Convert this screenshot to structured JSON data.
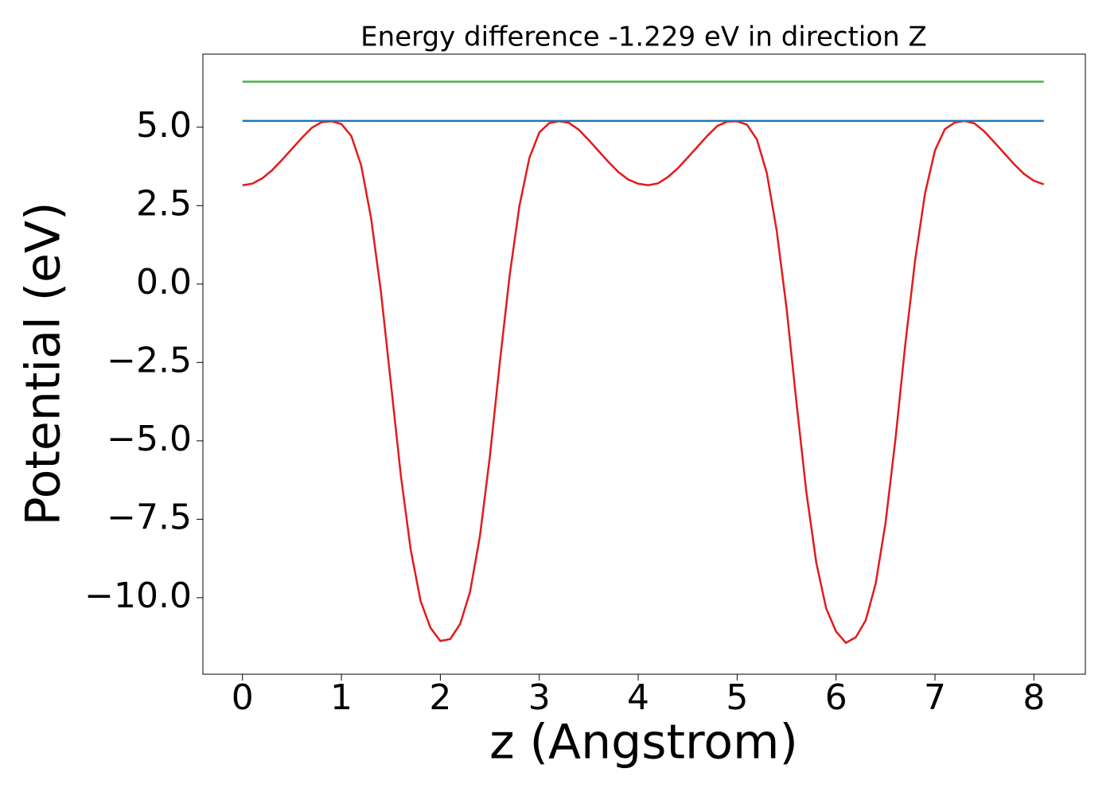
{
  "chart_data": {
    "type": "line",
    "title": "Energy difference -1.229 eV in direction Z",
    "x_label": "z (Angstrom)",
    "y_label": "Potential (eV)",
    "xlim": [
      -0.4,
      8.52
    ],
    "ylim": [
      -12.44,
      7.33
    ],
    "xticks": [
      0,
      1,
      2,
      3,
      4,
      5,
      6,
      7,
      8
    ],
    "yticks": [
      {
        "value": -10,
        "label": "−10.0"
      },
      {
        "value": -7.5,
        "label": "−7.5"
      },
      {
        "value": -5,
        "label": "−5.0"
      },
      {
        "value": -2.5,
        "label": "−2.5"
      },
      {
        "value": 0,
        "label": "0.0"
      },
      {
        "value": 2.5,
        "label": "2.5"
      },
      {
        "value": 5,
        "label": "5.0"
      }
    ],
    "series": [
      {
        "color": "#e31a1c",
        "x": [
          0,
          0.1,
          0.2,
          0.3,
          0.4,
          0.5,
          0.6,
          0.7,
          0.8,
          0.9,
          1,
          1.1,
          1.2,
          1.3,
          1.4,
          1.5,
          1.6,
          1.7,
          1.8,
          1.9,
          2,
          2.1,
          2.2,
          2.3,
          2.4,
          2.5,
          2.6,
          2.7,
          2.8,
          2.9,
          3,
          3.1,
          3.2,
          3.3,
          3.4,
          3.5,
          3.6,
          3.7,
          3.8,
          3.9,
          4,
          4.1,
          4.2,
          4.3,
          4.4,
          4.5,
          4.6,
          4.7,
          4.8,
          4.9,
          5,
          5.1,
          5.2,
          5.3,
          5.4,
          5.5,
          5.6,
          5.7,
          5.8,
          5.9,
          6,
          6.1,
          6.2,
          6.3,
          6.4,
          6.5,
          6.6,
          6.7,
          6.8,
          6.9,
          7,
          7.1,
          7.2,
          7.3,
          7.4,
          7.5,
          7.6,
          7.7,
          7.8,
          7.9,
          8,
          8.1
        ],
        "values": [
          3.15,
          3.2,
          3.37,
          3.63,
          3.96,
          4.31,
          4.66,
          4.98,
          5.16,
          5.19,
          5.1,
          4.72,
          3.78,
          2.1,
          -0.26,
          -3.16,
          -6.08,
          -8.46,
          -10.1,
          -10.96,
          -11.38,
          -11.32,
          -10.84,
          -9.82,
          -8.04,
          -5.52,
          -2.54,
          0.26,
          2.5,
          4.02,
          4.83,
          5.13,
          5.19,
          5.14,
          4.92,
          4.59,
          4.24,
          3.89,
          3.57,
          3.33,
          3.2,
          3.15,
          3.21,
          3.41,
          3.69,
          4.03,
          4.38,
          4.73,
          5.04,
          5.18,
          5.19,
          5.08,
          4.61,
          3.54,
          1.7,
          -0.78,
          -3.78,
          -6.64,
          -8.88,
          -10.34,
          -11.08,
          -11.44,
          -11.26,
          -10.72,
          -9.56,
          -7.62,
          -4.96,
          -1.92,
          0.78,
          2.9,
          4.26,
          4.94,
          5.15,
          5.2,
          5.12,
          4.86,
          4.52,
          4.17,
          3.82,
          3.51,
          3.29,
          3.18
        ]
      },
      {
        "color": "#1f77b4",
        "x": [
          0,
          8.1
        ],
        "values": [
          5.2,
          5.2
        ]
      },
      {
        "color": "#4daf4a",
        "x": [
          0,
          8.1
        ],
        "values": [
          6.45,
          6.45
        ]
      }
    ]
  }
}
